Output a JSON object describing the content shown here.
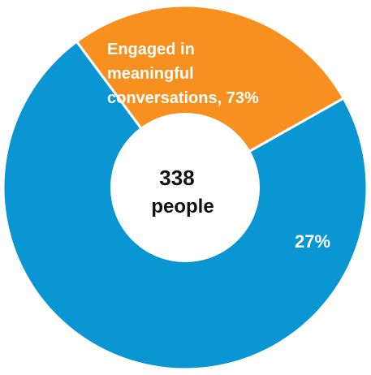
{
  "chart_data": {
    "type": "pie",
    "style": "donut",
    "center_label": {
      "line1": "338",
      "line2": "people"
    },
    "slices": [
      {
        "label_lines": [
          "Engaged in",
          "meaningful",
          "conversations, 73%"
        ],
        "value": 73,
        "color": "#0a95d3"
      },
      {
        "label_lines": [
          "27%"
        ],
        "value": 27,
        "color": "#f7901e"
      }
    ]
  }
}
